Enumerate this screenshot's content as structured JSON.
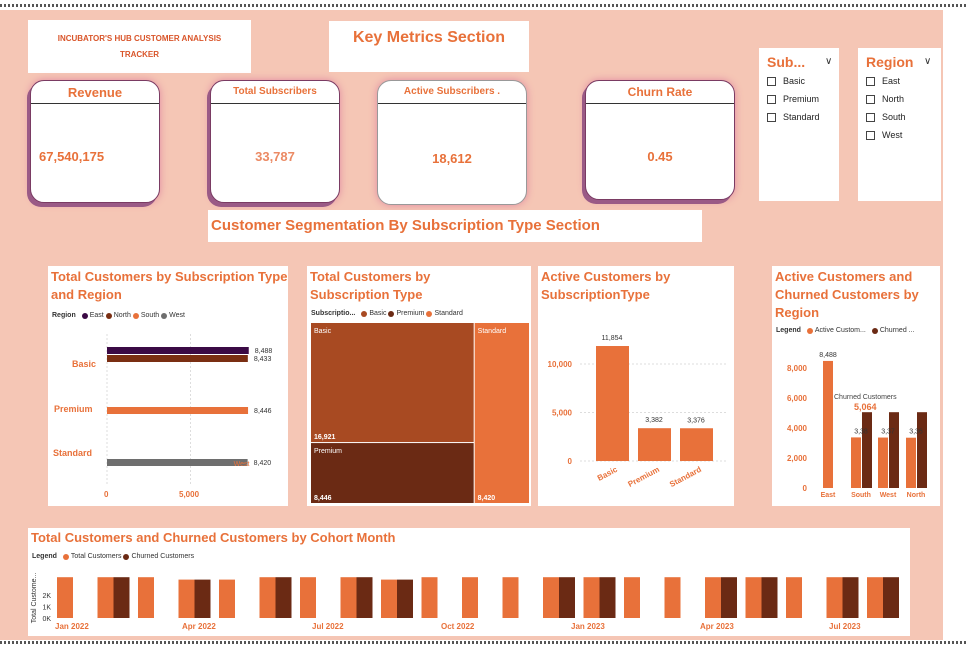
{
  "header": {
    "title_line1": "INCUBATOR'S HUB CUSTOMER ANALYSIS",
    "title_line2": "TRACKER",
    "key_metrics": "Key Metrics Section",
    "segmentation": "Customer Segmentation By Subscription Type Section"
  },
  "kpis": {
    "revenue": {
      "label": "Revenue",
      "value": "67,540,175"
    },
    "total_subscribers": {
      "label": "Total Subscribers",
      "value": "33,787"
    },
    "active_subscribers": {
      "label": "Active Subscribers .",
      "value": "18,612"
    },
    "churn_rate": {
      "label": "Churn Rate",
      "value": "0.45"
    }
  },
  "slicers": {
    "subscription": {
      "title": "Sub...",
      "options": [
        "Basic",
        "Premium",
        "Standard"
      ]
    },
    "region": {
      "title": "Region",
      "options": [
        "East",
        "North",
        "South",
        "West"
      ]
    }
  },
  "colors": {
    "east": "#3b0a45",
    "north": "#7a2e12",
    "south": "#e8713a",
    "west": "#6e6e6e",
    "basic": "#a84a22",
    "premium": "#6b2a14",
    "standard": "#e8713a",
    "total": "#e8713a",
    "churned": "#6b2a14"
  },
  "chart_data": [
    {
      "type": "bar",
      "title": "Total Customers by Subscription Type and Region",
      "orientation": "horizontal",
      "legend_title": "Region",
      "legend": [
        "East",
        "North",
        "South",
        "West"
      ],
      "categories": [
        "Basic",
        "Premium",
        "Standard"
      ],
      "series": [
        {
          "name": "East",
          "values": [
            8488,
            null,
            null
          ]
        },
        {
          "name": "North",
          "values": [
            8433,
            null,
            null
          ]
        },
        {
          "name": "South",
          "values": [
            null,
            8446,
            null
          ]
        },
        {
          "name": "West",
          "values": [
            null,
            null,
            8420
          ]
        }
      ],
      "value_labels": [
        "8,488",
        "8,433",
        "8,446",
        "8,420"
      ],
      "ticks": [
        "0",
        "5,000"
      ],
      "west_label": "West"
    },
    {
      "type": "treemap",
      "title_line1": "Total Customers by",
      "title_line2": "Subscription Type",
      "legend_title": "Subscriptio...",
      "legend": [
        "Basic",
        "Premium",
        "Standard"
      ],
      "items": [
        {
          "name": "Basic",
          "value": 16921,
          "label": "16,921"
        },
        {
          "name": "Premium",
          "value": 8446,
          "label": "8,446"
        },
        {
          "name": "Standard",
          "value": 8420,
          "label": "8,420"
        }
      ]
    },
    {
      "type": "bar",
      "title_line1": "Active Customers by",
      "title_line2": "SubscriptionType",
      "categories": [
        "Basic",
        "Premium",
        "Standard"
      ],
      "values": [
        11854,
        3382,
        3376
      ],
      "value_labels": [
        "11,854",
        "3,382",
        "3,376"
      ],
      "ticks": [
        "0",
        "5,000",
        "10,000"
      ],
      "ylim": [
        0,
        13000
      ]
    },
    {
      "type": "bar",
      "title_line1": "Active Customers and",
      "title_line2": "Churned Customers by",
      "title_line3": "Region",
      "legend_title": "Legend",
      "legend": [
        "Active Custom...",
        "Churned ..."
      ],
      "categories": [
        "East",
        "South",
        "West",
        "North"
      ],
      "series": [
        {
          "name": "Active Customers",
          "values": [
            8488,
            3380,
            3370,
            3360
          ]
        },
        {
          "name": "Churned Customers",
          "values": [
            0,
            5064,
            5064,
            5064
          ]
        }
      ],
      "value_labels": [
        "8,488",
        "3,38",
        "3,37",
        "3,36"
      ],
      "ticks": [
        "0",
        "2,000",
        "4,000",
        "6,000",
        "8,000"
      ],
      "ylim": [
        0,
        9500
      ],
      "tooltip_label": "Churned Customers",
      "tooltip_value": "5,064"
    },
    {
      "type": "bar",
      "title": "Total Customers and Churned Customers by Cohort Month",
      "legend_title": "Legend",
      "legend": [
        "Total Customers",
        "Churned Customers"
      ],
      "ylabel": "Total Custome...",
      "ticks": [
        "0K",
        "1K",
        "2K"
      ],
      "x_labels": [
        "Jan 2022",
        "Apr 2022",
        "Jul 2022",
        "Oct 2022",
        "Jan 2023",
        "Apr 2023",
        "Jul 2023"
      ],
      "groups": [
        {
          "total": 1.7,
          "churned": 0
        },
        {
          "total": 1.7,
          "churned": 1.7
        },
        {
          "total": 1.7,
          "churned": 0
        },
        {
          "total": 1.6,
          "churned": 1.6
        },
        {
          "total": 1.6,
          "churned": 0
        },
        {
          "total": 1.7,
          "churned": 1.7
        },
        {
          "total": 1.7,
          "churned": 0
        },
        {
          "total": 1.7,
          "churned": 1.7
        },
        {
          "total": 1.6,
          "churned": 1.6
        },
        {
          "total": 1.7,
          "churned": 0
        },
        {
          "total": 1.7,
          "churned": 0
        },
        {
          "total": 1.7,
          "churned": 0
        },
        {
          "total": 1.7,
          "churned": 1.7
        },
        {
          "total": 1.7,
          "churned": 1.7
        },
        {
          "total": 1.7,
          "churned": 0
        },
        {
          "total": 1.7,
          "churned": 0
        },
        {
          "total": 1.7,
          "churned": 1.7
        },
        {
          "total": 1.7,
          "churned": 1.7
        },
        {
          "total": 1.7,
          "churned": 0
        },
        {
          "total": 1.7,
          "churned": 1.7
        },
        {
          "total": 1.7,
          "churned": 1.7
        }
      ]
    }
  ]
}
